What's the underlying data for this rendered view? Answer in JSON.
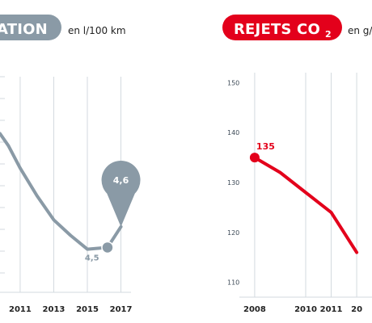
{
  "chart_data": [
    {
      "type": "line",
      "title": "ATION",
      "unit": "en l/100 km",
      "color": "#8a9aa6",
      "x_ticks": [
        "2011",
        "2013",
        "2015",
        "2017"
      ],
      "xlim": [
        2009.8,
        2017.6
      ],
      "ylim": [
        4.2,
        5.45
      ],
      "series": [
        {
          "x": [
            2009.8,
            2010.3,
            2011,
            2012,
            2013,
            2014,
            2015,
            2016.2,
            2017
          ],
          "y": [
            5.12,
            5.05,
            4.92,
            4.76,
            4.62,
            4.53,
            4.45,
            4.46,
            4.58
          ]
        }
      ],
      "annotations": [
        {
          "text": "4,5",
          "x": 2016.2,
          "y": 4.46,
          "style": "marker"
        },
        {
          "text": "4,6",
          "x": 2017,
          "y": 4.58,
          "style": "pin"
        }
      ]
    },
    {
      "type": "line",
      "title": "REJETS CO2",
      "title_main": "REJETS CO",
      "title_sub": "2",
      "unit": "en g/",
      "color": "#e3001b",
      "x_ticks": [
        "2008",
        "2010",
        "2011",
        "20"
      ],
      "x_tick_positions": [
        2008,
        2010,
        2011,
        2012
      ],
      "xlim": [
        2007.4,
        2012.6
      ],
      "ylim": [
        108,
        152
      ],
      "y_ticks": [
        110,
        120,
        130,
        140,
        150
      ],
      "series": [
        {
          "x": [
            2008,
            2009,
            2010,
            2011,
            2012
          ],
          "y": [
            135,
            132,
            128,
            124,
            116
          ]
        }
      ],
      "annotations": [
        {
          "text": "135",
          "x": 2008,
          "y": 135
        }
      ]
    }
  ]
}
